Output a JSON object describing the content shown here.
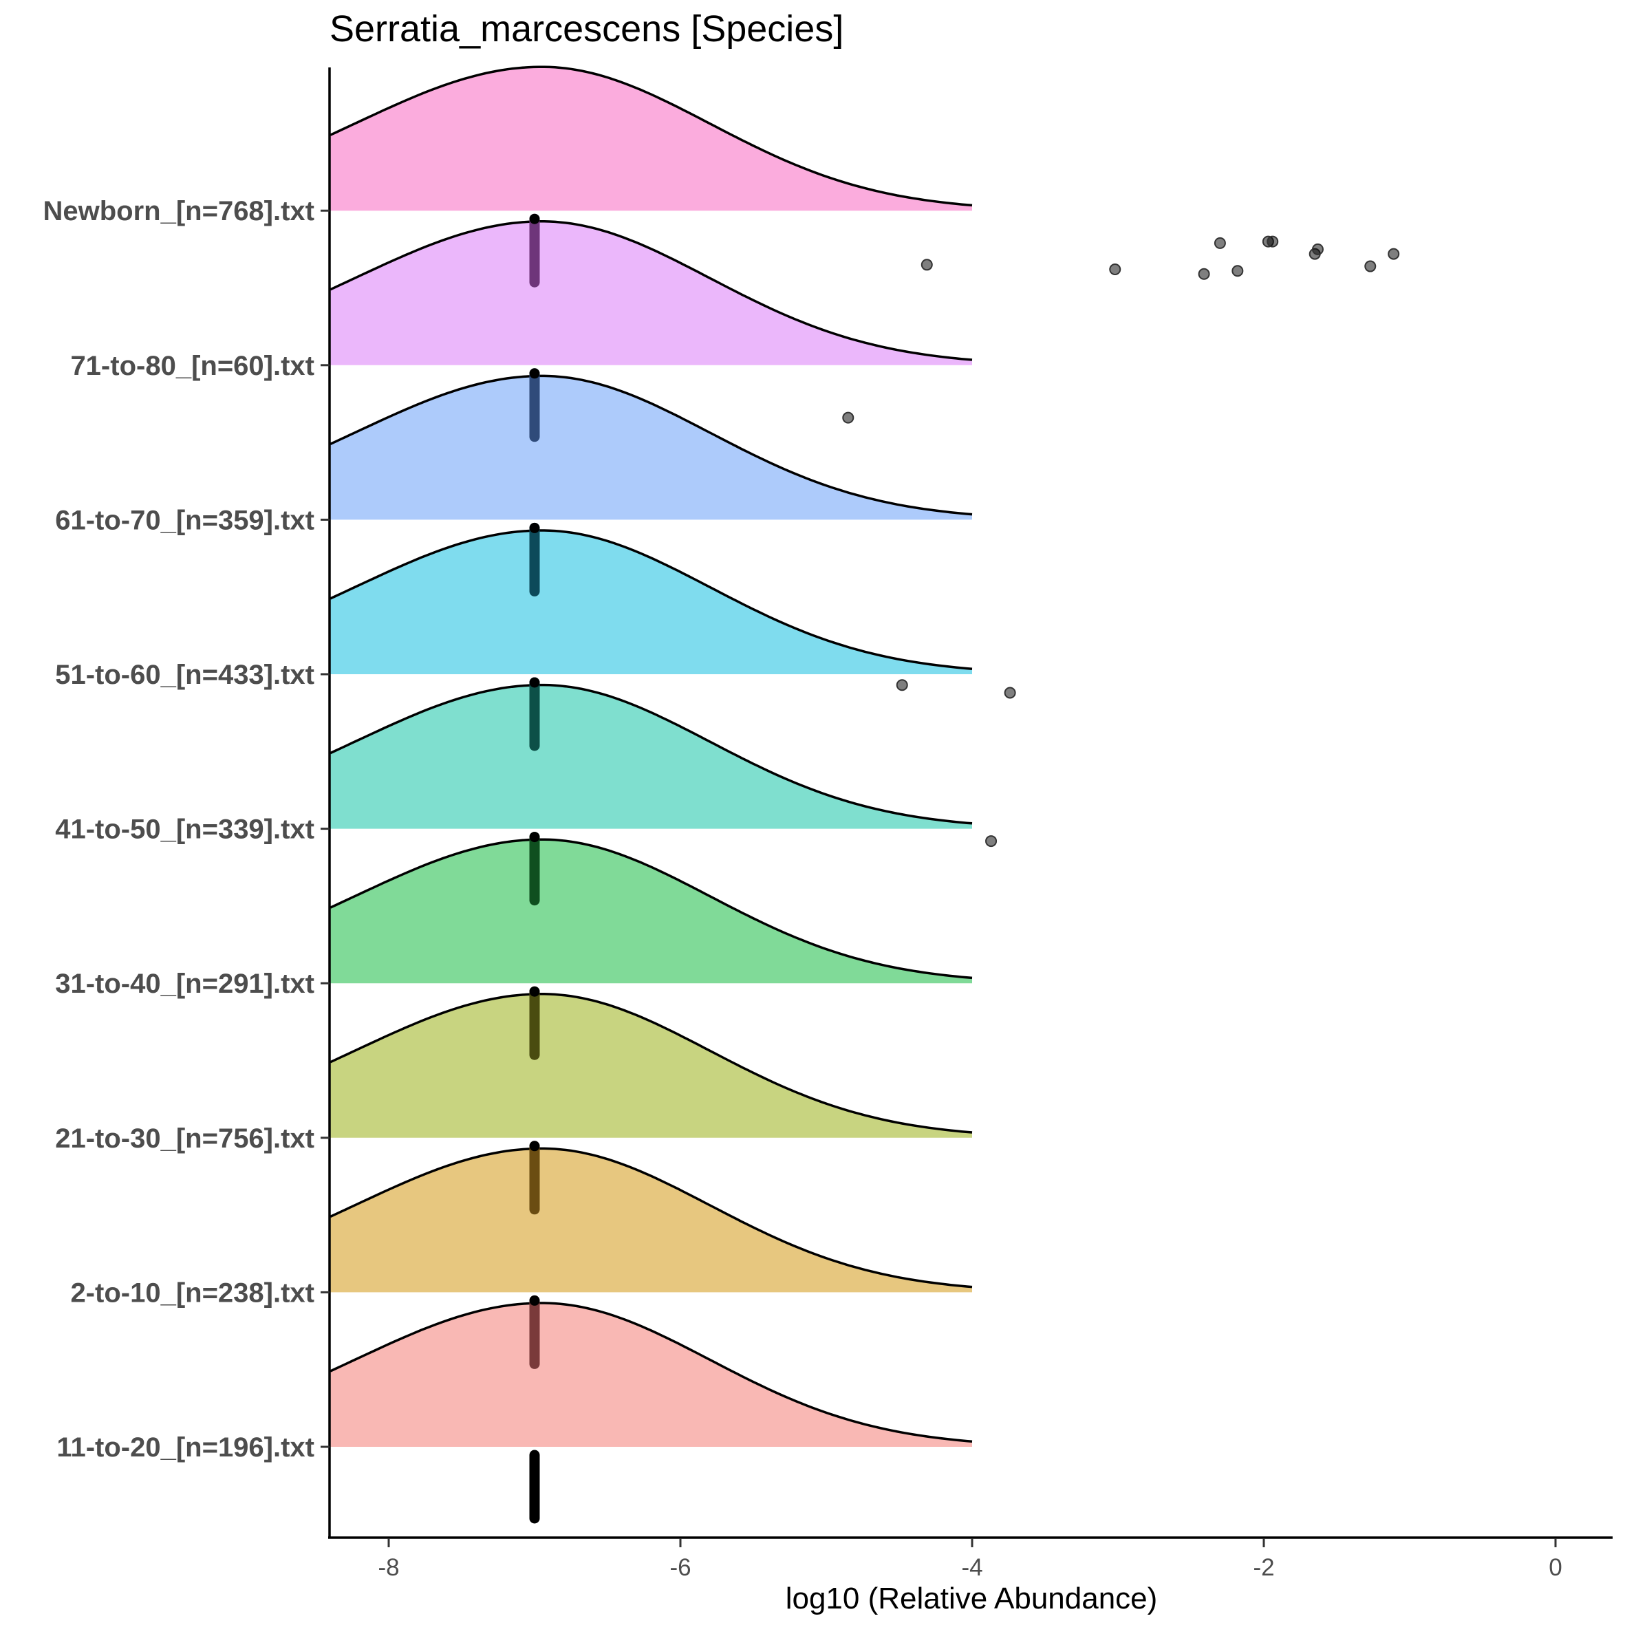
{
  "chart_data": {
    "type": "ridgeline",
    "title": "Serratia_marcescens [Species]",
    "xlabel": "log10 (Relative Abundance)",
    "ylabel": "",
    "xlim": [
      -8.4,
      0.39
    ],
    "x_ticks": [
      -8,
      -6,
      -4,
      -2,
      0
    ],
    "x_tick_labels": [
      "-8",
      "-6",
      "-4",
      "-2",
      "0"
    ],
    "grid": false,
    "legend": "none",
    "categories": [
      "11-to-20_[n=196].txt",
      "2-to-10_[n=238].txt",
      "21-to-30_[n=756].txt",
      "31-to-40_[n=291].txt",
      "41-to-50_[n=339].txt",
      "51-to-60_[n=433].txt",
      "61-to-70_[n=359].txt",
      "71-to-80_[n=60].txt",
      "Newborn_[n=768].txt"
    ],
    "series": [
      {
        "name": "11-to-20_[n=196].txt",
        "fill": "#f9b8b4",
        "density_peak_x": -6.95,
        "density_range": [
          -8.4,
          -4.0
        ],
        "median": -7.0,
        "bar_color": "#000000",
        "outliers": []
      },
      {
        "name": "2-to-10_[n=238].txt",
        "fill": "#e7c77f",
        "density_peak_x": -6.95,
        "density_range": [
          -8.4,
          -4.0
        ],
        "median": -7.0,
        "bar_color": "#7a3a3a",
        "outliers": []
      },
      {
        "name": "21-to-30_[n=756].txt",
        "fill": "#c8d480",
        "density_peak_x": -6.95,
        "density_range": [
          -8.4,
          -4.0
        ],
        "median": -7.0,
        "bar_color": "#6b4d12",
        "outliers": []
      },
      {
        "name": "31-to-40_[n=291].txt",
        "fill": "#80da98",
        "density_peak_x": -6.95,
        "density_range": [
          -8.4,
          -4.0
        ],
        "median": -7.0,
        "bar_color": "#4a4c10",
        "outliers": []
      },
      {
        "name": "41-to-50_[n=339].txt",
        "fill": "#7fdfcf",
        "density_peak_x": -6.95,
        "density_range": [
          -8.4,
          -4.0
        ],
        "median": -7.0,
        "bar_color": "#0f4f1f",
        "outliers": [
          {
            "x": -3.87,
            "jitter": 0.08
          }
        ]
      },
      {
        "name": "51-to-60_[n=433].txt",
        "fill": "#7fdcee",
        "density_peak_x": -6.95,
        "density_range": [
          -8.4,
          -4.0
        ],
        "median": -7.0,
        "bar_color": "#0d5048",
        "outliers": [
          {
            "x": -4.48,
            "jitter": 0.07
          },
          {
            "x": -3.74,
            "jitter": 0.12
          }
        ]
      },
      {
        "name": "61-to-70_[n=359].txt",
        "fill": "#adcbfb",
        "density_peak_x": -6.95,
        "density_range": [
          -8.4,
          -4.0
        ],
        "median": -7.0,
        "bar_color": "#0d4a5a",
        "outliers": [
          {
            "x": -4.85,
            "jitter": -0.66
          }
        ]
      },
      {
        "name": "71-to-80_[n=60].txt",
        "fill": "#ebb7fb",
        "density_peak_x": -6.95,
        "density_range": [
          -8.4,
          -4.0
        ],
        "median": -7.0,
        "bar_color": "#2f4b7a",
        "outliers": []
      },
      {
        "name": "Newborn_[n=768].txt",
        "fill": "#fbacdd",
        "density_peak_x": -6.95,
        "density_range": [
          -8.4,
          -4.0
        ],
        "median": -7.0,
        "bar_color": "#6e357a",
        "outliers": [
          {
            "x": -4.31,
            "jitter": 0.35
          },
          {
            "x": -3.02,
            "jitter": 0.38
          },
          {
            "x": -2.41,
            "jitter": 0.41
          },
          {
            "x": -2.3,
            "jitter": 0.21
          },
          {
            "x": -2.18,
            "jitter": 0.39
          },
          {
            "x": -1.97,
            "jitter": 0.2
          },
          {
            "x": -1.94,
            "jitter": 0.2
          },
          {
            "x": -1.65,
            "jitter": 0.28
          },
          {
            "x": -1.63,
            "jitter": 0.25
          },
          {
            "x": -1.27,
            "jitter": 0.36
          },
          {
            "x": -1.11,
            "jitter": 0.28
          }
        ]
      }
    ]
  }
}
